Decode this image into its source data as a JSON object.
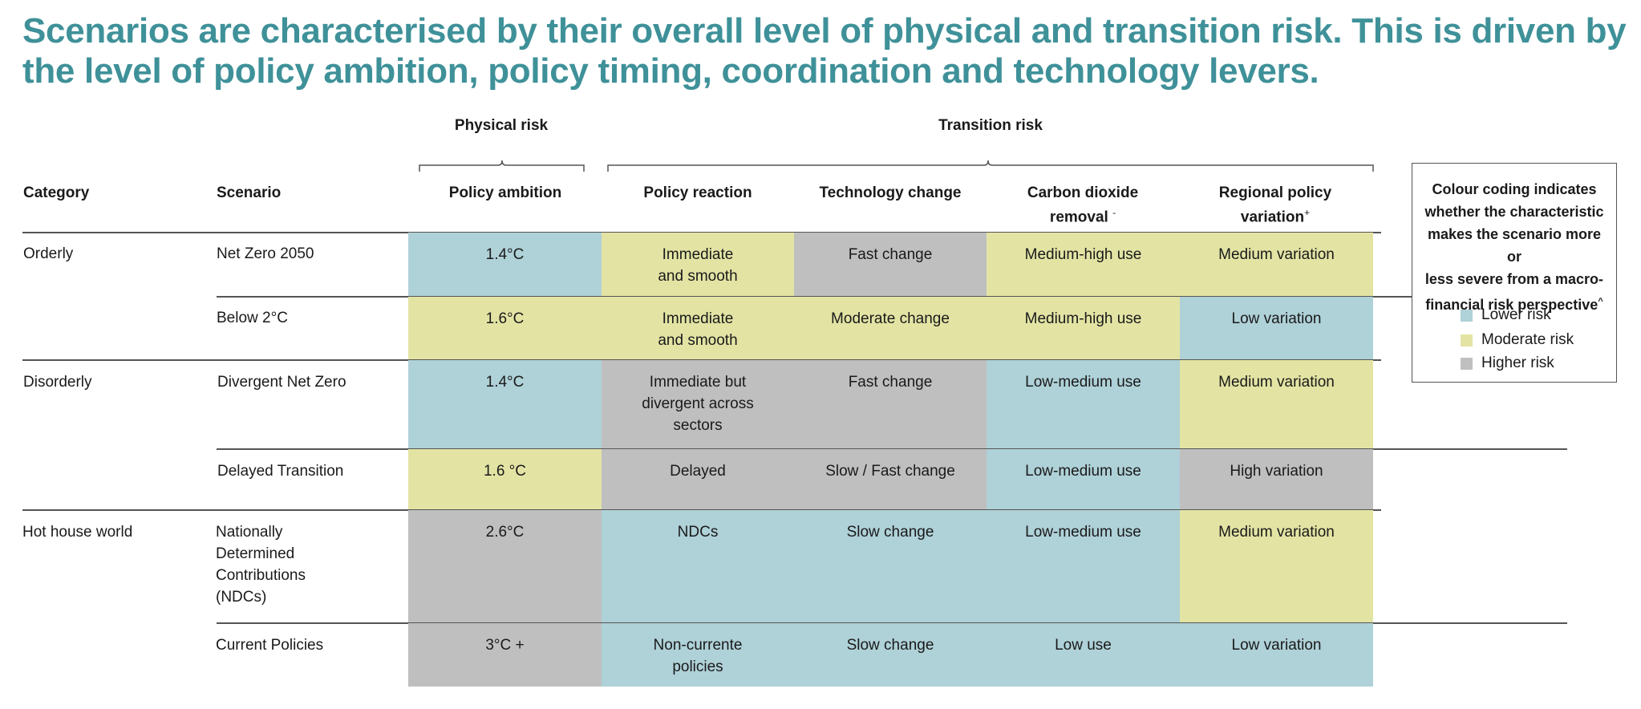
{
  "title": "Scenarios are characterised by their overall level of physical and transition risk. This is driven by the level of policy ambition, policy timing, coordination and technology levers.",
  "groups": {
    "physical": "Physical risk",
    "transition": "Transition risk"
  },
  "headers": {
    "category": "Category",
    "scenario": "Scenario",
    "policy_ambition": "Policy ambition",
    "policy_reaction": "Policy reaction",
    "technology_change": "Technology change",
    "cdr_line1": "Carbon dioxide",
    "cdr_line2": "removal",
    "cdr_mark": "-",
    "regional_line1": "Regional policy",
    "regional_line2": "variation",
    "regional_mark": "+"
  },
  "colors": {
    "lower": "#afd1d8",
    "moderate": "#e3e4a4",
    "higher": "#bfbfbf",
    "title": "#3f9199"
  },
  "categories": [
    "Orderly",
    "Disorderly",
    "Hot house world"
  ],
  "rows": [
    {
      "scenario": [
        "Net Zero 2050"
      ],
      "ambition": "1.4°C",
      "reaction": [
        "Immediate",
        "and smooth"
      ],
      "technology": "Fast change",
      "cdr": "Medium-high use",
      "regional": "Medium variation"
    },
    {
      "scenario": [
        "Below 2°C"
      ],
      "ambition": "1.6°C",
      "reaction": [
        "Immediate",
        "and smooth"
      ],
      "technology": "Moderate change",
      "cdr": "Medium-high use",
      "regional": "Low variation"
    },
    {
      "scenario": [
        "Divergent Net Zero"
      ],
      "ambition": "1.4°C",
      "reaction": [
        "Immediate but",
        "divergent across",
        "sectors"
      ],
      "technology": "Fast change",
      "cdr": "Low-medium use",
      "regional": "Medium variation"
    },
    {
      "scenario": [
        "Delayed Transition"
      ],
      "ambition": "1.6 °C",
      "reaction": [
        "Delayed"
      ],
      "technology": "Slow / Fast change",
      "cdr": "Low-medium use",
      "regional": "High variation"
    },
    {
      "scenario": [
        "Nationally",
        "Determined",
        "Contributions",
        "(NDCs)"
      ],
      "ambition": "2.6°C",
      "reaction": [
        "NDCs"
      ],
      "technology": "Slow change",
      "cdr": "Low-medium use",
      "regional": "Medium variation"
    },
    {
      "scenario": [
        "Current Policies"
      ],
      "ambition": "3°C +",
      "reaction": [
        "Non-currente",
        "policies"
      ],
      "technology": "Slow change",
      "cdr": "Low use",
      "regional": "Low variation"
    }
  ],
  "legend": {
    "title": [
      "Colour coding indicates",
      "whether the characteristic",
      "makes the scenario more or",
      "less severe from a macro-",
      "financial risk perspective"
    ],
    "title_mark": "^",
    "items": [
      "Lower risk",
      "Moderate risk",
      "Higher risk"
    ]
  }
}
